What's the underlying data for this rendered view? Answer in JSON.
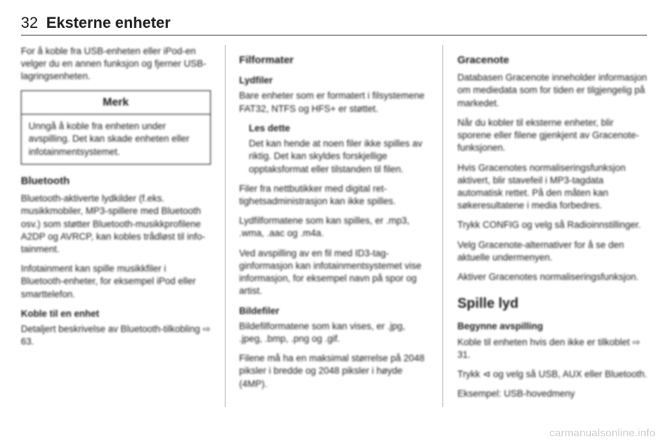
{
  "header": {
    "page_number": "32",
    "title": "Eksterne enheter"
  },
  "col1": {
    "p1": "For å koble fra USB-enheten eller iPod-en velger du en annen funksjon og fjerner USB-lagringsenheten.",
    "notice_head": "Merk",
    "notice_body": "Unngå å koble fra enheten under avspilling. Det kan skade enheten eller infotainmentsystemet.",
    "h_bluetooth": "Bluetooth",
    "p2": "Bluetooth-aktiverte lydkilder (f.eks. musikkmobiler, MP3-spillere med Bluetooth osv.) som støtter Blue­tooth-musikkprofilene A2DP og AVRCP, kan kobles trådløst til info­tainment.",
    "p3": "Infotainment kan spille musikkfiler i Bluetooth-enheter, for eksempel iPod eller smarttelefon.",
    "h_koble": "Koble til en enhet",
    "p4": "Detaljert beskrivelse av Bluetooth-til­kobling ⇨ 63."
  },
  "col2": {
    "h_fil": "Filformater",
    "h_lyd": "Lydfiler",
    "p1": "Bare enheter som er formatert i filsy­stemene FAT32, NTFS og HFS+ er støttet.",
    "h_les": "Les dette",
    "p2": "Det kan hende at noen filer ikke spil­les av riktig. Det kan skyldes forskjel­lige opptaksformat eller tilstanden til filen.",
    "p3": "Filer fra nettbutikker med digital ret­tighetsadministrasjon kan ikke spil­les.",
    "p4": "Lydfilformatene som kan spilles, er .mp3, .wma, .aac og .m4a.",
    "p5": "Ved avspilling av en fil med ID3-tag­ginformasjon kan infotainmentsys­temet vise informasjon, for eksempel navn på spor og artist.",
    "h_bilde": "Bildefiler",
    "p6": "Bildefilformatene som kan vises, er .jpg, .jpeg, .bmp, .png og .gif.",
    "p7": "Filene må ha en maksimal størrelse på 2048 piksler i bredde og 2048 piksler i høyde (4MP)."
  },
  "col3": {
    "h_grace": "Gracenote",
    "p1": "Databasen Gracenote inneholder in­formasjon om mediedata som for ti­den er tilgjengelig på markedet.",
    "p2": "Når du kobler til eksterne enheter, blir sporene eller filene gjenkjent av Gra­cenote-funksjonen.",
    "p3": "Hvis Gracenotes normaliseringsfunk­sjon aktivert, blir stavefeil i MP3-tagdata automatisk rettet. På den måten kan søkeresultatene i media forbedres.",
    "p4": "Trykk CONFIG og velg så Radioinn­stillinger.",
    "p5": "Velg Gracenote-alternativer for å se den aktuelle undermenyen.",
    "p6": "Aktiver Gracenotes normaliserings­funksjon.",
    "h_spille": "Spille lyd",
    "h_begynne": "Begynne avspilling",
    "p7": "Koble til enheten hvis den ikke er til­koblet ⇨ 31.",
    "p8": "Trykk ⊲ og velg så USB, AUX eller Bluetooth.",
    "p9": "Eksempel: USB-hovedmeny"
  },
  "watermark": "carmanualsonline.info"
}
